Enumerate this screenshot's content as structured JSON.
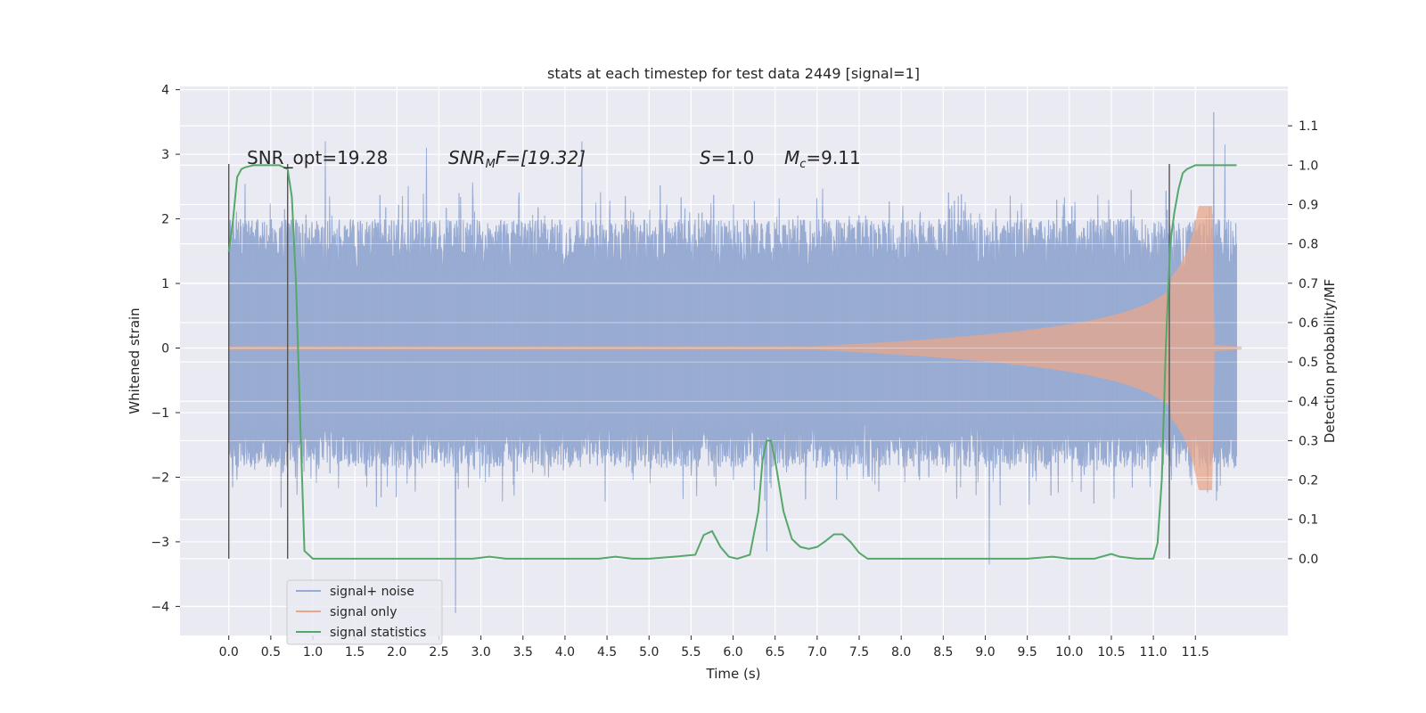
{
  "chart_data": {
    "type": "line",
    "title": "stats at each timestep for test data 2449 [signal=1]",
    "xlabel": "Time (s)",
    "ylabel": "Whitened strain",
    "ylabel_right": "Detection probability/MF",
    "xlim": [
      -0.58,
      12.6
    ],
    "ylim": [
      -4.45,
      4.05
    ],
    "ylim_right": [
      -0.195,
      1.2
    ],
    "x_ticks": [
      "0.0",
      "0.5",
      "1.0",
      "1.5",
      "2.0",
      "2.5",
      "3.0",
      "3.5",
      "4.0",
      "4.5",
      "5.0",
      "5.5",
      "6.0",
      "6.5",
      "7.0",
      "7.5",
      "8.0",
      "8.5",
      "9.0",
      "9.5",
      "10.0",
      "10.5",
      "11.0",
      "11.5"
    ],
    "y_ticks_left": [
      "−4",
      "−3",
      "−2",
      "−1",
      "0",
      "1",
      "2",
      "3",
      "4"
    ],
    "y_ticks_right": [
      "0.0",
      "0.1",
      "0.2",
      "0.3",
      "0.4",
      "0.5",
      "0.6",
      "0.7",
      "0.8",
      "0.9",
      "1.0",
      "1.1"
    ],
    "grid": true,
    "legend_position": "lower-left",
    "annotations": {
      "snr_opt": "SNR_opt=19.28",
      "snr_mf_main": "SNR",
      "snr_mf_sub": "M",
      "snr_mf_rest": "F=[19.32]",
      "s_main": "S",
      "s_rest": "=1.0",
      "mc_main": "M",
      "mc_sub": "c",
      "mc_rest": "=9.11"
    },
    "vertical_markers_x": [
      0.0,
      0.7,
      11.19
    ],
    "series": [
      {
        "name": "signal+ noise",
        "color": "#98abd2",
        "duration": [
          0.0,
          11.99
        ],
        "typical_envelope": [
          -1.5,
          1.9
        ],
        "peaks": [
          [
            1.15,
            3.2
          ],
          [
            2.35,
            3.1
          ],
          [
            4.2,
            3.2
          ],
          [
            11.72,
            3.65
          ],
          [
            11.85,
            3.15
          ],
          [
            2.7,
            -4.1
          ],
          [
            9.05,
            -3.35
          ],
          [
            6.4,
            -3.15
          ]
        ]
      },
      {
        "name": "signal only",
        "color": "#e8a78a",
        "chirp_start": 7.0,
        "merger_time": 11.7,
        "peak_amplitude": 2.2
      },
      {
        "name": "signal statistics",
        "color": "#55a868",
        "x": [
          0.0,
          0.05,
          0.1,
          0.15,
          0.2,
          0.3,
          0.4,
          0.5,
          0.6,
          0.65,
          0.7,
          0.75,
          0.8,
          0.85,
          0.9,
          1.0,
          1.5,
          2.0,
          2.5,
          2.9,
          3.1,
          3.3,
          3.6,
          4.0,
          4.4,
          4.6,
          4.8,
          5.0,
          5.3,
          5.55,
          5.65,
          5.75,
          5.85,
          5.95,
          6.05,
          6.2,
          6.3,
          6.35,
          6.4,
          6.45,
          6.5,
          6.6,
          6.7,
          6.8,
          6.9,
          7.0,
          7.1,
          7.2,
          7.3,
          7.4,
          7.5,
          7.6,
          8.0,
          8.5,
          9.0,
          9.5,
          9.8,
          10.0,
          10.3,
          10.5,
          10.6,
          10.8,
          11.0,
          11.05,
          11.1,
          11.15,
          11.2,
          11.25,
          11.3,
          11.35,
          11.4,
          11.5,
          11.6,
          11.7,
          11.99
        ],
        "y": [
          0.78,
          0.86,
          0.97,
          0.99,
          0.995,
          1.0,
          1.0,
          1.0,
          1.0,
          0.995,
          0.99,
          0.92,
          0.7,
          0.35,
          0.02,
          0.0,
          0.0,
          0.0,
          0.0,
          0.0,
          0.005,
          0.0,
          0.0,
          0.0,
          0.0,
          0.005,
          0.0,
          0.0,
          0.005,
          0.01,
          0.06,
          0.07,
          0.03,
          0.005,
          0.0,
          0.01,
          0.12,
          0.25,
          0.3,
          0.3,
          0.25,
          0.12,
          0.05,
          0.03,
          0.025,
          0.03,
          0.045,
          0.062,
          0.062,
          0.042,
          0.015,
          0.0,
          0.0,
          0.0,
          0.0,
          0.0,
          0.005,
          0.0,
          0.0,
          0.012,
          0.005,
          0.0,
          0.0,
          0.04,
          0.2,
          0.55,
          0.8,
          0.88,
          0.94,
          0.98,
          0.99,
          1.0,
          1.0,
          1.0,
          1.0
        ]
      }
    ]
  }
}
